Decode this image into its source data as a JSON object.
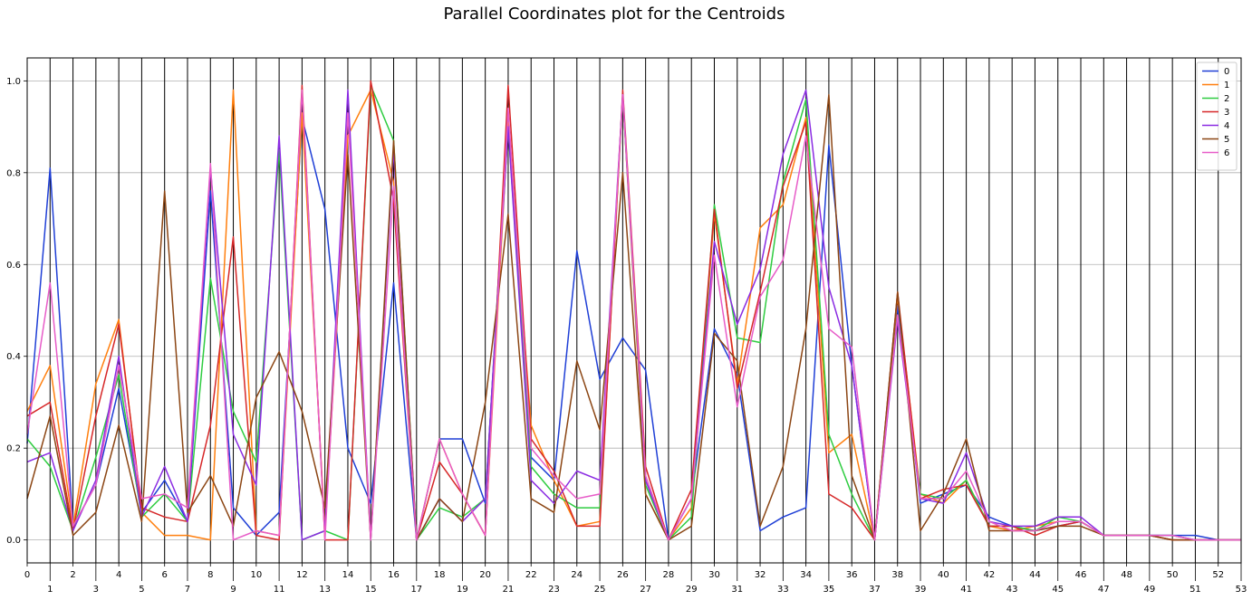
{
  "chart_data": {
    "type": "line",
    "title": "Parallel Coordinates plot for the Centroids",
    "xlabel": "",
    "ylabel": "",
    "x": [
      0,
      1,
      2,
      3,
      4,
      5,
      6,
      7,
      8,
      9,
      10,
      11,
      12,
      13,
      14,
      15,
      16,
      17,
      18,
      19,
      20,
      21,
      22,
      23,
      24,
      25,
      26,
      27,
      28,
      29,
      30,
      31,
      32,
      33,
      34,
      35,
      36,
      37,
      38,
      39,
      40,
      41,
      42,
      43,
      44,
      45,
      46,
      47,
      48,
      49,
      50,
      51,
      52,
      53
    ],
    "xlim": [
      0,
      53
    ],
    "ylim": [
      -0.05,
      1.05
    ],
    "yticks": [
      0.0,
      0.2,
      0.4,
      0.6,
      0.8,
      1.0
    ],
    "ytick_labels": [
      "0.0",
      "0.2",
      "0.4",
      "0.6",
      "0.8",
      "1.0"
    ],
    "grid": true,
    "legend_position": "top-right",
    "series": [
      {
        "name": "0",
        "color": "#1f3fd6",
        "values": [
          0.21,
          0.81,
          0.03,
          0.12,
          0.33,
          0.06,
          0.13,
          0.04,
          0.76,
          0.07,
          0.01,
          0.06,
          0.92,
          0.72,
          0.2,
          0.08,
          0.56,
          0.0,
          0.22,
          0.22,
          0.08,
          0.93,
          0.18,
          0.13,
          0.63,
          0.35,
          0.44,
          0.37,
          0.0,
          0.09,
          0.46,
          0.36,
          0.02,
          0.05,
          0.07,
          0.86,
          0.38,
          0.0,
          0.51,
          0.08,
          0.1,
          0.12,
          0.05,
          0.03,
          0.02,
          0.03,
          0.04,
          0.01,
          0.01,
          0.01,
          0.01,
          0.01,
          0.0,
          0.0
        ]
      },
      {
        "name": "1",
        "color": "#ff7f0e",
        "values": [
          0.28,
          0.38,
          0.03,
          0.34,
          0.48,
          0.06,
          0.01,
          0.01,
          0.0,
          0.98,
          0.02,
          0.01,
          0.93,
          0.02,
          0.88,
          0.98,
          0.78,
          0.0,
          0.22,
          0.1,
          0.01,
          0.91,
          0.25,
          0.13,
          0.03,
          0.04,
          0.97,
          0.1,
          0.0,
          0.07,
          0.71,
          0.34,
          0.68,
          0.73,
          0.92,
          0.19,
          0.23,
          0.0,
          0.53,
          0.1,
          0.08,
          0.13,
          0.03,
          0.02,
          0.03,
          0.04,
          0.04,
          0.01,
          0.01,
          0.01,
          0.0,
          0.0,
          0.0,
          0.0
        ]
      },
      {
        "name": "2",
        "color": "#2ecc40",
        "values": [
          0.22,
          0.16,
          0.02,
          0.18,
          0.36,
          0.05,
          0.1,
          0.04,
          0.57,
          0.28,
          0.17,
          0.85,
          0.0,
          0.02,
          0.0,
          0.99,
          0.87,
          0.0,
          0.07,
          0.05,
          0.09,
          0.9,
          0.16,
          0.1,
          0.07,
          0.07,
          0.97,
          0.12,
          0.0,
          0.05,
          0.73,
          0.44,
          0.43,
          0.78,
          0.96,
          0.23,
          0.1,
          0.0,
          0.49,
          0.1,
          0.09,
          0.13,
          0.03,
          0.03,
          0.02,
          0.05,
          0.04,
          0.01,
          0.01,
          0.01,
          0.01,
          0.0,
          0.0,
          0.0
        ]
      },
      {
        "name": "3",
        "color": "#d62728",
        "values": [
          0.27,
          0.3,
          0.02,
          0.27,
          0.47,
          0.07,
          0.05,
          0.04,
          0.25,
          0.66,
          0.01,
          0.0,
          0.99,
          0.0,
          0.0,
          1.0,
          0.74,
          0.0,
          0.17,
          0.1,
          0.01,
          0.99,
          0.22,
          0.15,
          0.03,
          0.03,
          0.98,
          0.16,
          0.0,
          0.11,
          0.72,
          0.33,
          0.54,
          0.77,
          0.91,
          0.1,
          0.07,
          0.0,
          0.54,
          0.09,
          0.11,
          0.12,
          0.03,
          0.03,
          0.01,
          0.03,
          0.04,
          0.01,
          0.01,
          0.01,
          0.0,
          0.0,
          0.0,
          0.0
        ]
      },
      {
        "name": "4",
        "color": "#8a2be2",
        "values": [
          0.17,
          0.19,
          0.02,
          0.13,
          0.4,
          0.05,
          0.16,
          0.04,
          0.81,
          0.23,
          0.12,
          0.88,
          0.0,
          0.02,
          0.98,
          0.0,
          0.85,
          0.0,
          0.09,
          0.04,
          0.09,
          0.9,
          0.13,
          0.08,
          0.15,
          0.13,
          0.97,
          0.13,
          0.0,
          0.09,
          0.65,
          0.47,
          0.59,
          0.84,
          0.98,
          0.55,
          0.38,
          0.0,
          0.48,
          0.09,
          0.08,
          0.19,
          0.04,
          0.03,
          0.03,
          0.05,
          0.05,
          0.01,
          0.01,
          0.01,
          0.01,
          0.0,
          0.0,
          0.0
        ]
      },
      {
        "name": "5",
        "color": "#8b4513",
        "values": [
          0.09,
          0.27,
          0.01,
          0.06,
          0.25,
          0.04,
          0.76,
          0.06,
          0.14,
          0.03,
          0.31,
          0.41,
          0.28,
          0.07,
          0.84,
          0.0,
          0.87,
          0.0,
          0.09,
          0.04,
          0.3,
          0.71,
          0.09,
          0.06,
          0.39,
          0.24,
          0.8,
          0.1,
          0.0,
          0.03,
          0.45,
          0.39,
          0.03,
          0.16,
          0.46,
          0.97,
          0.14,
          0.0,
          0.54,
          0.02,
          0.1,
          0.22,
          0.02,
          0.02,
          0.02,
          0.03,
          0.03,
          0.01,
          0.01,
          0.01,
          0.0,
          0.0,
          0.0,
          0.0
        ]
      },
      {
        "name": "6",
        "color": "#e75cc8",
        "values": [
          0.23,
          0.56,
          0.03,
          0.12,
          0.38,
          0.09,
          0.1,
          0.07,
          0.82,
          0.0,
          0.02,
          0.01,
          0.98,
          0.0,
          0.93,
          0.0,
          0.77,
          0.0,
          0.22,
          0.1,
          0.01,
          0.94,
          0.2,
          0.14,
          0.09,
          0.1,
          0.97,
          0.14,
          0.0,
          0.09,
          0.62,
          0.29,
          0.53,
          0.61,
          0.88,
          0.46,
          0.42,
          0.0,
          0.49,
          0.09,
          0.09,
          0.15,
          0.04,
          0.02,
          0.02,
          0.04,
          0.04,
          0.01,
          0.01,
          0.01,
          0.01,
          0.0,
          0.0,
          0.0
        ]
      }
    ]
  }
}
